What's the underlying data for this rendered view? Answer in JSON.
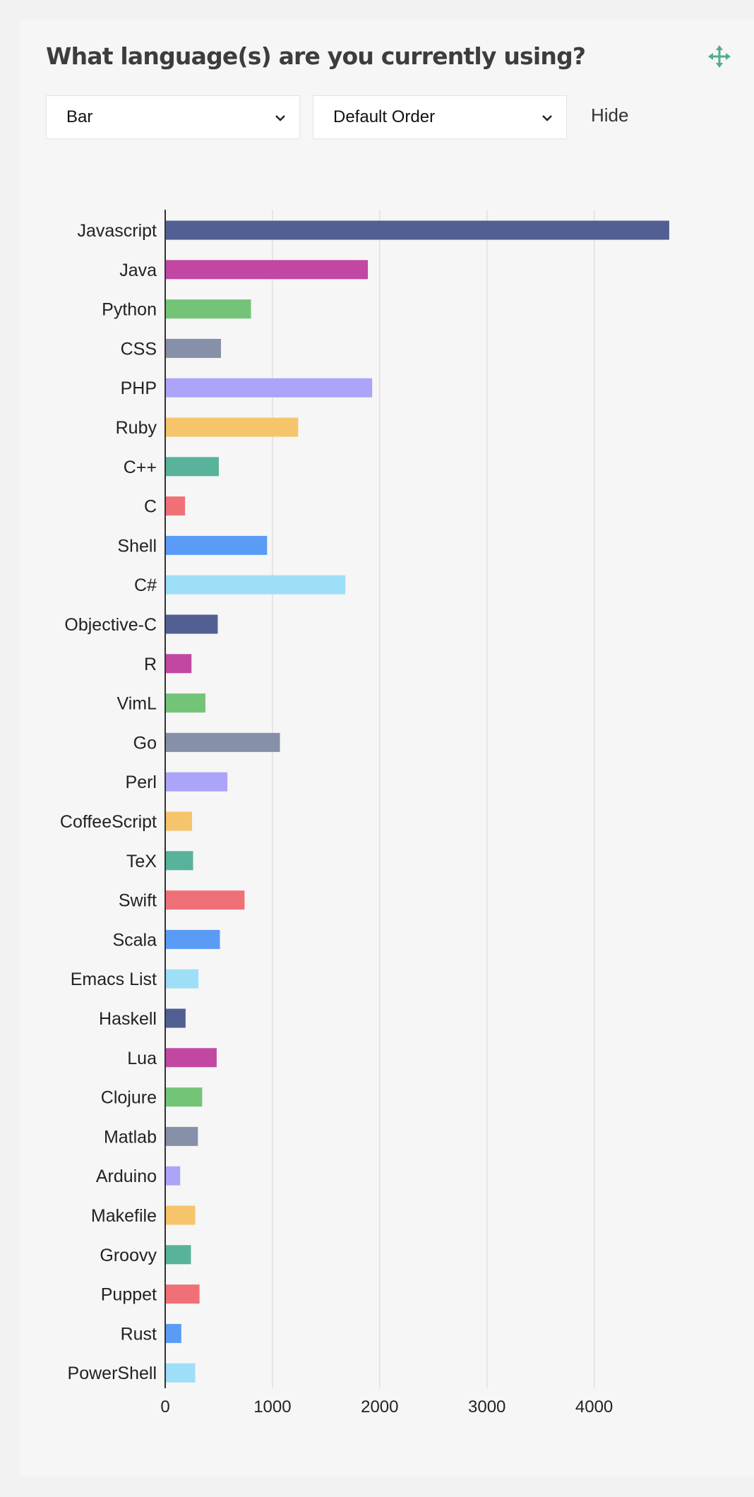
{
  "header": {
    "title": "What language(s) are you currently using?",
    "move_icon": "move-arrows-icon",
    "accent_color": "#4fae8f"
  },
  "controls": {
    "chart_type": {
      "value": "Bar"
    },
    "order": {
      "value": "Default Order"
    },
    "hide_label": "Hide"
  },
  "chart_data": {
    "type": "bar",
    "orientation": "horizontal",
    "categories": [
      "Javascript",
      "Java",
      "Python",
      "CSS",
      "PHP",
      "Ruby",
      "C++",
      "C",
      "Shell",
      "C#",
      "Objective-C",
      "R",
      "VimL",
      "Go",
      "Perl",
      "CoffeeScript",
      "TeX",
      "Swift",
      "Scala",
      "Emacs List",
      "Haskell",
      "Lua",
      "Clojure",
      "Matlab",
      "Arduino",
      "Makefile",
      "Groovy",
      "Puppet",
      "Rust",
      "PowerShell"
    ],
    "values": [
      4700,
      1890,
      800,
      520,
      1930,
      1240,
      500,
      185,
      950,
      1680,
      490,
      245,
      375,
      1070,
      580,
      250,
      260,
      740,
      510,
      310,
      190,
      480,
      345,
      305,
      140,
      280,
      240,
      320,
      150,
      280
    ],
    "xlim": [
      0,
      5000
    ],
    "xticks": [
      0,
      1000,
      2000,
      3000,
      4000
    ],
    "grid": true,
    "palette": [
      "#525f92",
      "#c147a2",
      "#74c478",
      "#8690a8",
      "#aba4f8",
      "#f6c56b",
      "#59b29a",
      "#ef7177",
      "#5a9cf5",
      "#9fdef7"
    ]
  }
}
